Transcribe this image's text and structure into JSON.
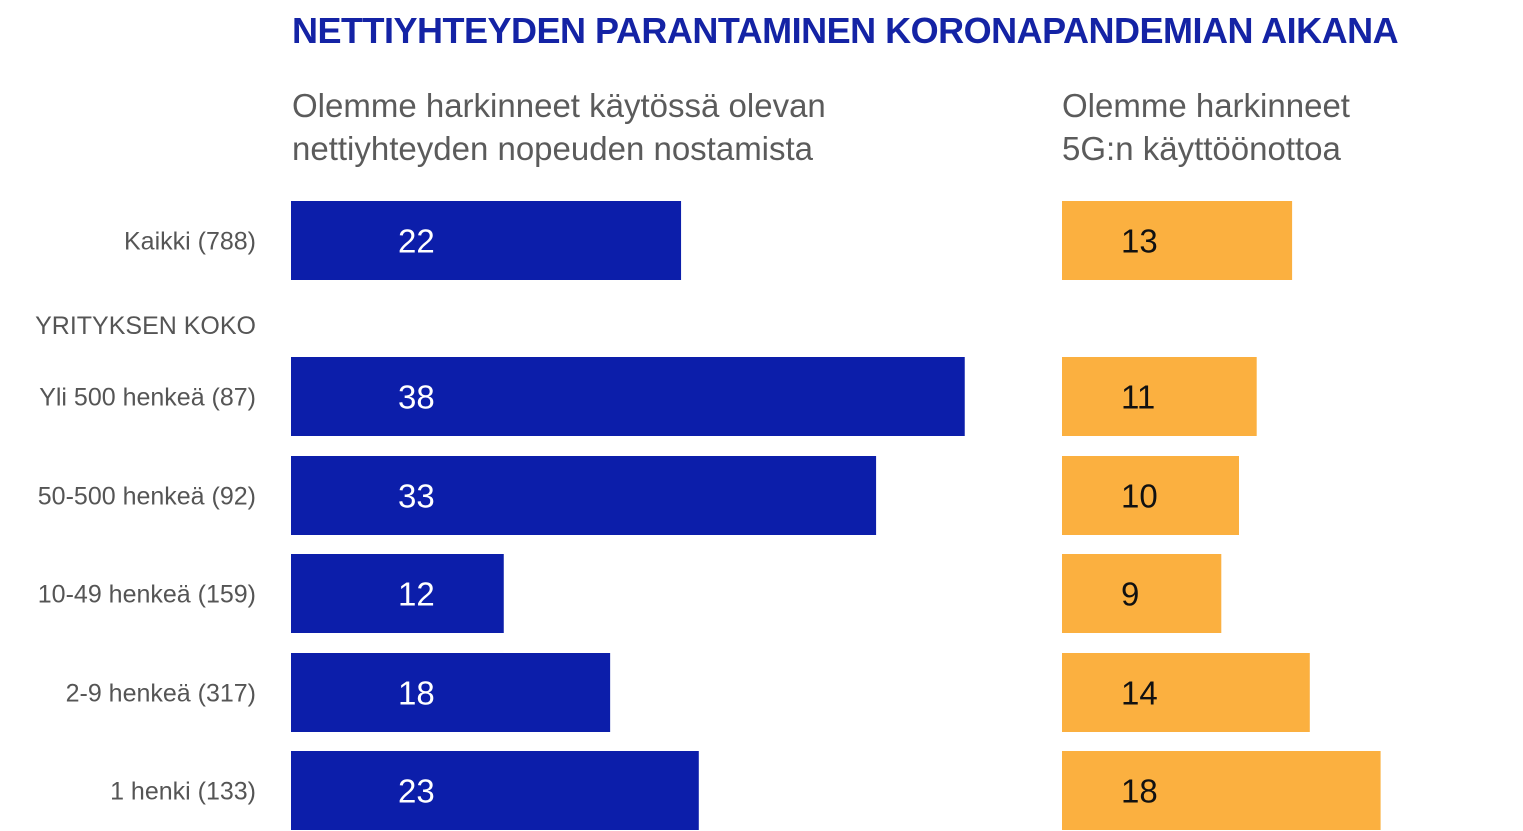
{
  "title": "NETTIYHTEYDEN PARANTAMINEN KORONAPANDEMIAN AIKANA",
  "section_label": "YRITYKSEN KOKO",
  "colors": {
    "title": "#1423a5",
    "series1": "#0c1eaa",
    "series2": "#fbb040",
    "text": "#555555"
  },
  "chart_data": {
    "type": "bar",
    "orientation": "horizontal",
    "title": "NETTIYHTEYDEN PARANTAMINEN KORONAPANDEMIAN AIKANA",
    "categories": [
      "Kaikki (788)",
      "Yli 500 henkeä (87)",
      "50-500 henkeä (92)",
      "10-49 henkeä (159)",
      "2-9 henkeä (317)",
      "1 henki  (133)"
    ],
    "series": [
      {
        "name": "Olemme harkinneet käytössä olevan\nnettiyhteyden nopeuden nostamista",
        "values": [
          22,
          38,
          33,
          12,
          18,
          23
        ]
      },
      {
        "name": "Olemme harkinneet\n5G:n käyttöönottoa",
        "values": [
          13,
          11,
          10,
          9,
          14,
          18
        ]
      }
    ]
  }
}
